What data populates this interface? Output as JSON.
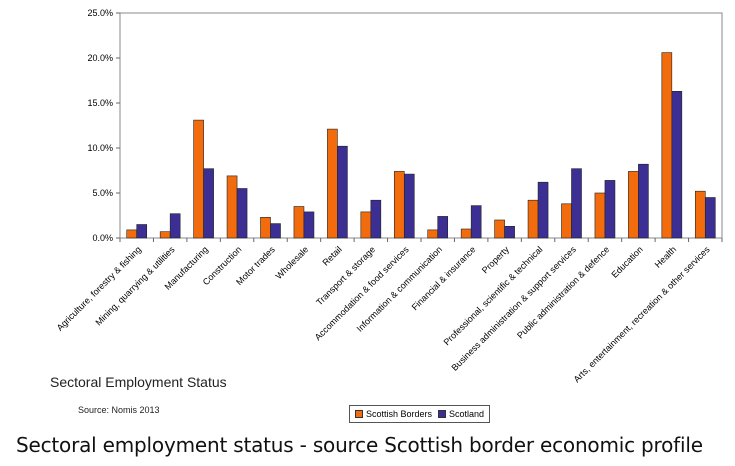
{
  "chart_data": {
    "type": "bar",
    "title": "Sectoral Employment Status",
    "xlabel": "",
    "ylabel": "",
    "ylim": [
      0,
      25
    ],
    "yticks": [
      "0.0%",
      "5.0%",
      "10.0%",
      "15.0%",
      "20.0%",
      "25.0%"
    ],
    "ytick_values": [
      0,
      5,
      10,
      15,
      20,
      25
    ],
    "grid": false,
    "legend_position": "bottom",
    "categories": [
      "Agriculture, forestry & fishing",
      "Mining, quarrying & utilities",
      "Manufacturing",
      "Construction",
      "Motor trades",
      "Wholesale",
      "Retail",
      "Transport & storage",
      "Accommodation & food services",
      "Information & communication",
      "Financial & insurance",
      "Property",
      "Professional, scientific & technical",
      "Business administration & support services",
      "Public administration & defence",
      "Education",
      "Health",
      "Arts, entertainment, recreation & other services"
    ],
    "series": [
      {
        "name": "Scottish Borders",
        "color": "#f26c0d",
        "values": [
          0.9,
          0.7,
          13.1,
          6.9,
          2.3,
          3.5,
          12.1,
          2.9,
          7.4,
          0.9,
          1.0,
          2.0,
          4.2,
          3.8,
          5.0,
          7.4,
          20.6,
          5.2
        ]
      },
      {
        "name": "Scotland",
        "color": "#3b2f94",
        "values": [
          1.5,
          2.7,
          7.7,
          5.5,
          1.6,
          2.9,
          10.2,
          4.2,
          7.1,
          2.4,
          3.6,
          1.3,
          6.2,
          7.7,
          6.4,
          8.2,
          16.3,
          4.5
        ]
      }
    ]
  },
  "source": "Source: Nomis 2013",
  "caption": "Sectoral employment status - source Scottish border economic profile"
}
